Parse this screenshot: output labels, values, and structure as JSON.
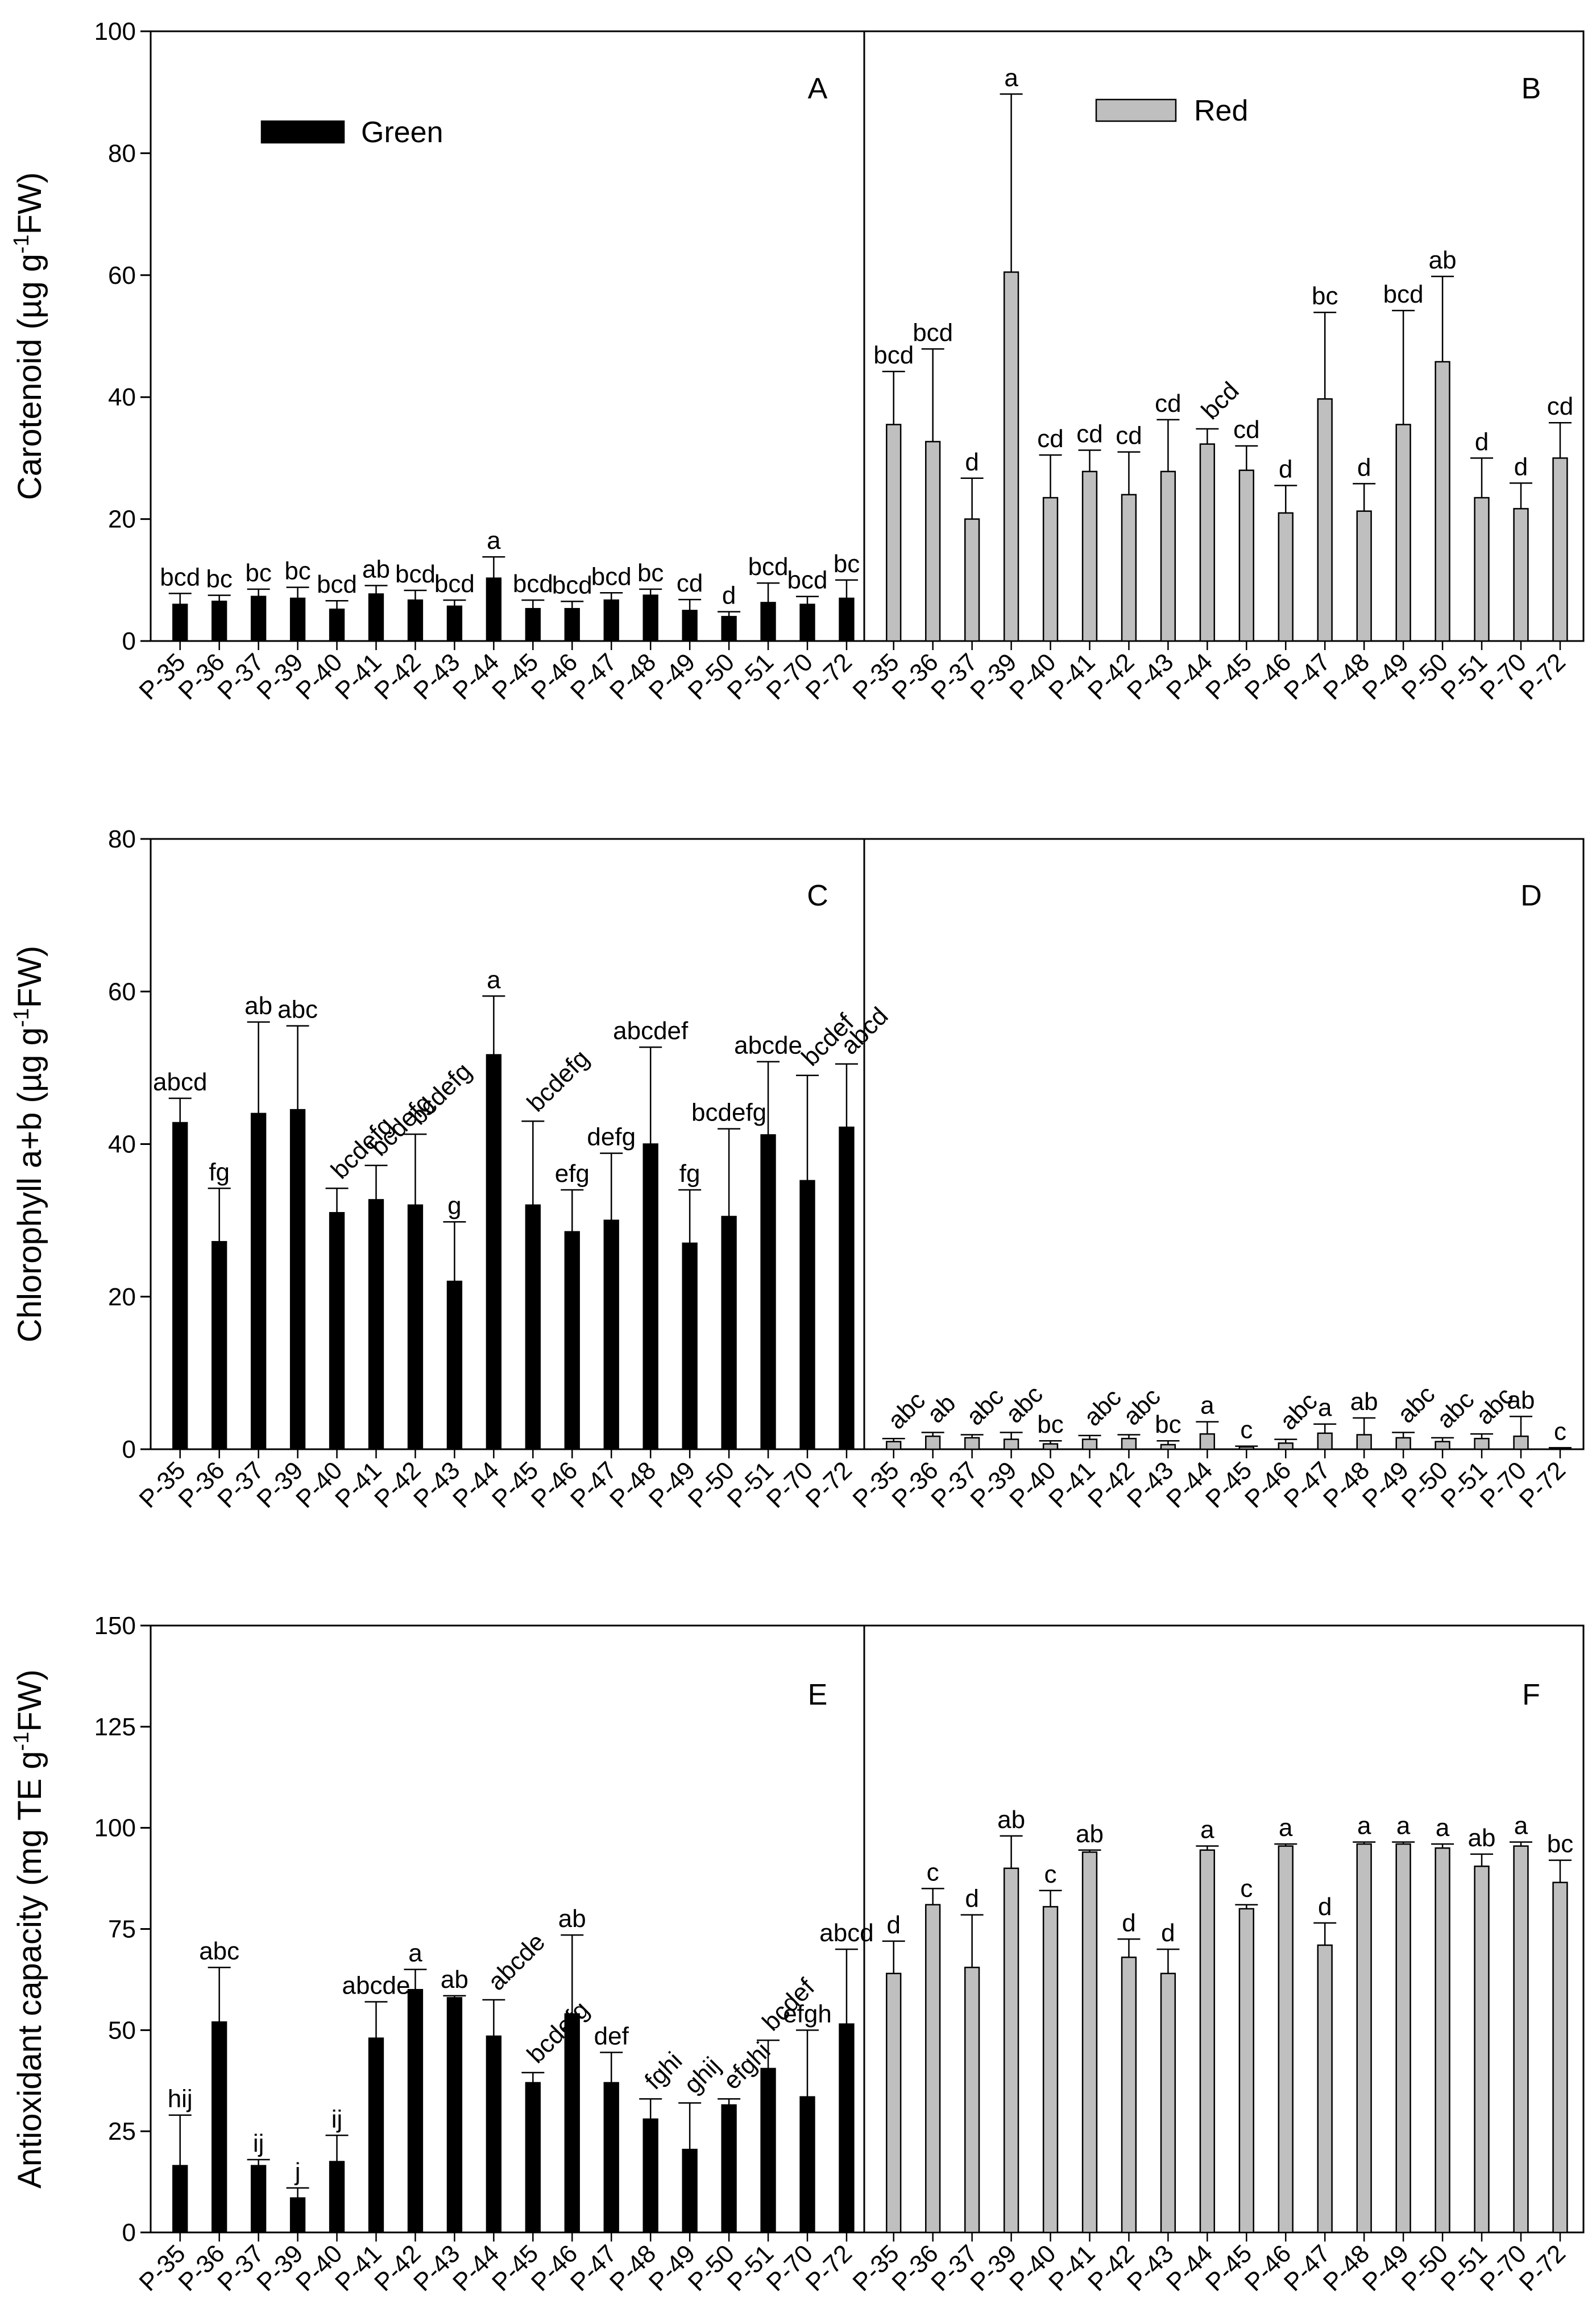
{
  "legend": {
    "green": "Green",
    "red": "Red"
  },
  "colors": {
    "green_fill": "#000000",
    "red_fill": "#bfbfbf",
    "stroke": "#000000"
  },
  "chart_data": [
    {
      "type": "bar",
      "panel_pair": [
        "A",
        "B"
      ],
      "ylabel_main": "Carotenoid (µg g",
      "ylabel_sup": "-1",
      "ylabel_tail": "FW)",
      "ylim": [
        0,
        100
      ],
      "yticks": [
        0,
        20,
        40,
        60,
        80,
        100
      ],
      "categories": [
        "P-35",
        "P-36",
        "P-37",
        "P-39",
        "P-40",
        "P-41",
        "P-42",
        "P-43",
        "P-44",
        "P-45",
        "P-46",
        "P-47",
        "P-48",
        "P-49",
        "P-50",
        "P-51",
        "P-70",
        "P-72"
      ],
      "series": [
        {
          "name": "Green",
          "panel": "A",
          "values": [
            6,
            6.5,
            7.3,
            7,
            5.2,
            7.7,
            6.7,
            5.7,
            10.3,
            5.3,
            5.3,
            6.7,
            7.5,
            5,
            4,
            6.3,
            6,
            7
          ],
          "errors": [
            1.8,
            1,
            1.2,
            1.8,
            1.4,
            1.4,
            1.6,
            1,
            3.5,
            1.4,
            1.2,
            1.2,
            1,
            1.8,
            0.8,
            3.2,
            1.3,
            3
          ],
          "letters": [
            "bcd",
            "bc",
            "bc",
            "bc",
            "bcd",
            "ab",
            "bcd",
            "bcd",
            "a",
            "bcd",
            "bcd",
            "bcd",
            "bc",
            "cd",
            "d",
            "bcd",
            "bcd",
            "bc"
          ],
          "rotated": [
            false,
            false,
            false,
            false,
            false,
            false,
            false,
            false,
            false,
            false,
            false,
            false,
            false,
            false,
            false,
            false,
            false,
            false
          ]
        },
        {
          "name": "Red",
          "panel": "B",
          "values": [
            35.5,
            32.7,
            20,
            60.5,
            23.5,
            27.8,
            24,
            27.8,
            32.3,
            28,
            21,
            39.7,
            21.3,
            35.5,
            45.8,
            23.5,
            21.7,
            30
          ],
          "errors": [
            8.7,
            15.2,
            6.7,
            29.2,
            7,
            3.5,
            7,
            8.5,
            2.5,
            4,
            4.5,
            14.2,
            4.5,
            18.7,
            14,
            6.5,
            4.2,
            5.8
          ],
          "letters": [
            "bcd",
            "bcd",
            "d",
            "a",
            "cd",
            "cd",
            "cd",
            "cd",
            "bcd",
            "cd",
            "d",
            "bc",
            "d",
            "bcd",
            "ab",
            "d",
            "d",
            "cd"
          ],
          "rotated": [
            false,
            false,
            false,
            false,
            false,
            false,
            false,
            false,
            true,
            false,
            false,
            false,
            false,
            false,
            false,
            false,
            false,
            false
          ]
        }
      ]
    },
    {
      "type": "bar",
      "panel_pair": [
        "C",
        "D"
      ],
      "ylabel_main": "Chlorophyll a+b (µg g",
      "ylabel_sup": "-1",
      "ylabel_tail": "FW)",
      "ylim": [
        0,
        80
      ],
      "yticks": [
        0,
        20,
        40,
        60,
        80
      ],
      "categories": [
        "P-35",
        "P-36",
        "P-37",
        "P-39",
        "P-40",
        "P-41",
        "P-42",
        "P-43",
        "P-44",
        "P-45",
        "P-46",
        "P-47",
        "P-48",
        "P-49",
        "P-50",
        "P-51",
        "P-70",
        "P-72"
      ],
      "series": [
        {
          "name": "Green",
          "panel": "C",
          "values": [
            42.8,
            27.2,
            44,
            44.5,
            31,
            32.7,
            32,
            22,
            51.7,
            32,
            28.5,
            30,
            40,
            27,
            30.5,
            41.2,
            35.2,
            42.2
          ],
          "errors": [
            3.2,
            7,
            12,
            11,
            3.2,
            4.5,
            9.3,
            7.8,
            7.7,
            11,
            5.5,
            8.8,
            12.7,
            7,
            11.5,
            9.6,
            13.8,
            8.3
          ],
          "letters": [
            "abcd",
            "fg",
            "ab",
            "abc",
            "bcdefg",
            "bcdefg",
            "bcdefg",
            "g",
            "a",
            "bcdefg",
            "efg",
            "defg",
            "abcdef",
            "fg",
            "bcdefg",
            "abcde",
            "bcdef",
            "abcd"
          ],
          "rotated": [
            false,
            false,
            false,
            false,
            true,
            true,
            true,
            false,
            false,
            true,
            false,
            false,
            false,
            false,
            false,
            false,
            true,
            true
          ]
        },
        {
          "name": "Red",
          "panel": "D",
          "values": [
            1,
            1.7,
            1.5,
            1.3,
            0.7,
            1.3,
            1.4,
            0.6,
            2,
            0.3,
            0.8,
            2.1,
            1.9,
            1.5,
            1,
            1.4,
            1.7,
            0.1
          ],
          "errors": [
            0.4,
            0.5,
            0.4,
            0.9,
            0.4,
            0.5,
            0.5,
            0.5,
            1.6,
            0.1,
            0.5,
            1.2,
            2.2,
            0.7,
            0.5,
            0.6,
            2.6,
            0.1
          ],
          "letters": [
            "abc",
            "ab",
            "abc",
            "abc",
            "bc",
            "abc",
            "abc",
            "bc",
            "a",
            "c",
            "abc",
            "a",
            "ab",
            "abc",
            "abc",
            "abc",
            "ab",
            "c"
          ],
          "rotated": [
            true,
            true,
            true,
            true,
            false,
            true,
            true,
            false,
            false,
            false,
            true,
            false,
            false,
            true,
            true,
            true,
            false,
            false
          ]
        }
      ]
    },
    {
      "type": "bar",
      "panel_pair": [
        "E",
        "F"
      ],
      "ylabel_main": "Antioxidant capacity (mg TE g",
      "ylabel_sup": "-1",
      "ylabel_tail": "FW)",
      "ylim": [
        0,
        150
      ],
      "yticks": [
        0,
        25,
        50,
        75,
        100,
        125,
        150
      ],
      "categories": [
        "P-35",
        "P-36",
        "P-37",
        "P-39",
        "P-40",
        "P-41",
        "P-42",
        "P-43",
        "P-44",
        "P-45",
        "P-46",
        "P-47",
        "P-48",
        "P-49",
        "P-50",
        "P-51",
        "P-70",
        "P-72"
      ],
      "series": [
        {
          "name": "Green",
          "panel": "E",
          "values": [
            16.5,
            52,
            16.5,
            8.5,
            17.5,
            48,
            60,
            58,
            48.5,
            37,
            54,
            37,
            28,
            20.5,
            31.5,
            40.5,
            33.5,
            51.5
          ],
          "errors": [
            12.5,
            13.5,
            1.5,
            2.5,
            6.5,
            9,
            5,
            0.5,
            9,
            2.5,
            19.5,
            7.5,
            5,
            11.5,
            1.5,
            7,
            16.5,
            18.5
          ],
          "letters": [
            "hij",
            "abc",
            "ij",
            "j",
            "ij",
            "abcde",
            "a",
            "ab",
            "abcde",
            "bcdefg",
            "ab",
            "def",
            "fghi",
            "ghij",
            "efghi",
            "bcdef",
            "efgh",
            "abcd"
          ],
          "rotated": [
            false,
            false,
            false,
            false,
            false,
            false,
            false,
            false,
            true,
            true,
            false,
            false,
            true,
            true,
            true,
            true,
            false,
            false
          ]
        },
        {
          "name": "Red",
          "panel": "F",
          "values": [
            64,
            81,
            65.5,
            90,
            80.5,
            94,
            68,
            64,
            94.5,
            80,
            95.5,
            71,
            96,
            96,
            95,
            90.5,
            95.5,
            86.5
          ],
          "errors": [
            8,
            4,
            13,
            8,
            4,
            0.5,
            4.5,
            6,
            1,
            1,
            0.5,
            5.5,
            0.5,
            0.5,
            1,
            3,
            1,
            5.5
          ],
          "letters": [
            "d",
            "c",
            "d",
            "ab",
            "c",
            "ab",
            "d",
            "d",
            "a",
            "c",
            "a",
            "d",
            "a",
            "a",
            "a",
            "ab",
            "a",
            "bc"
          ],
          "rotated": [
            false,
            false,
            false,
            false,
            false,
            false,
            false,
            false,
            false,
            false,
            false,
            false,
            false,
            false,
            false,
            false,
            false,
            false
          ]
        }
      ]
    }
  ]
}
